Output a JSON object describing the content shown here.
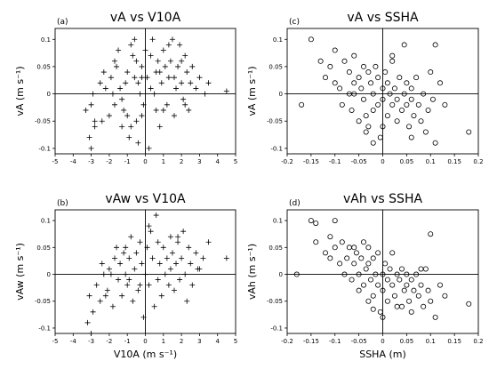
{
  "chart_data": [
    {
      "type": "scatter",
      "panel_label": "(a)",
      "title": "vA  vs  V10A",
      "xlabel": "",
      "ylabel": "vA  (m s⁻¹)",
      "xlim": [
        -5,
        5
      ],
      "ylim": [
        -0.11,
        0.12
      ],
      "xticks": [
        "-5",
        "-4",
        "-3",
        "-2",
        "-1",
        "0",
        "1",
        "2",
        "3",
        "4",
        "5"
      ],
      "yticks": [
        "-0.1",
        "-0.05",
        "0",
        "0.05",
        "0.1"
      ],
      "marker": "plus",
      "points": [
        [
          -3.1,
          -0.08
        ],
        [
          -3.0,
          -0.1
        ],
        [
          -2.8,
          -0.06
        ],
        [
          -3.3,
          -0.03
        ],
        [
          -3.0,
          -0.02
        ],
        [
          -2.4,
          -0.05
        ],
        [
          -2.2,
          0.01
        ],
        [
          -2.5,
          0.02
        ],
        [
          -2.0,
          -0.04
        ],
        [
          -2.3,
          0.04
        ],
        [
          -1.9,
          0.03
        ],
        [
          -1.7,
          -0.02
        ],
        [
          -1.6,
          0.05
        ],
        [
          -1.5,
          0.08
        ],
        [
          -1.7,
          0.06
        ],
        [
          -1.3,
          -0.06
        ],
        [
          -1.2,
          -0.03
        ],
        [
          -1.0,
          0.04
        ],
        [
          -1.1,
          0.02
        ],
        [
          -1.4,
          0.01
        ],
        [
          -1.3,
          -0.01
        ],
        [
          -0.9,
          -0.08
        ],
        [
          -0.8,
          0.09
        ],
        [
          -0.7,
          0.07
        ],
        [
          -0.6,
          0.03
        ],
        [
          -0.5,
          -0.05
        ],
        [
          -0.4,
          -0.09
        ],
        [
          -0.3,
          0.0
        ],
        [
          -0.2,
          -0.04
        ],
        [
          -0.5,
          0.06
        ],
        [
          -0.4,
          0.02
        ],
        [
          -0.2,
          0.05
        ],
        [
          -0.1,
          -0.02
        ],
        [
          0.2,
          -0.1
        ],
        [
          0.1,
          0.03
        ],
        [
          0.3,
          0.07
        ],
        [
          0.4,
          0.1
        ],
        [
          0.5,
          0.0
        ],
        [
          0.6,
          -0.03
        ],
        [
          0.7,
          0.06
        ],
        [
          0.8,
          0.04
        ],
        [
          0.8,
          -0.06
        ],
        [
          0.9,
          0.02
        ],
        [
          1.0,
          0.08
        ],
        [
          1.1,
          0.05
        ],
        [
          1.2,
          -0.02
        ],
        [
          1.3,
          0.03
        ],
        [
          1.4,
          0.06
        ],
        [
          1.5,
          0.1
        ],
        [
          1.6,
          -0.04
        ],
        [
          1.7,
          0.01
        ],
        [
          1.8,
          0.05
        ],
        [
          1.9,
          0.09
        ],
        [
          2.0,
          0.02
        ],
        [
          2.1,
          -0.01
        ],
        [
          2.2,
          0.07
        ],
        [
          2.3,
          0.04
        ],
        [
          2.4,
          -0.03
        ],
        [
          2.5,
          0.02
        ],
        [
          2.6,
          0.05
        ],
        [
          2.8,
          0.01
        ],
        [
          3.0,
          0.03
        ],
        [
          3.3,
          0.0
        ],
        [
          3.5,
          0.02
        ],
        [
          4.5,
          0.005
        ],
        [
          -0.6,
          0.1
        ],
        [
          0.0,
          0.08
        ],
        [
          1.6,
          0.03
        ],
        [
          -1.8,
          0.0
        ],
        [
          -2.8,
          -0.05
        ],
        [
          -2.9,
          0.0
        ],
        [
          -1.0,
          -0.04
        ],
        [
          0.6,
          0.04
        ],
        [
          1.0,
          -0.03
        ],
        [
          2.2,
          -0.02
        ],
        [
          -0.8,
          -0.06
        ],
        [
          0.3,
          0.01
        ],
        [
          -0.2,
          0.03
        ],
        [
          1.3,
          0.09
        ],
        [
          2.0,
          0.06
        ]
      ]
    },
    {
      "type": "scatter",
      "panel_label": "(c)",
      "title": "vA  vs  SSHA",
      "xlabel": "",
      "ylabel": "vA  (m s⁻¹)",
      "xlim": [
        -0.2,
        0.2
      ],
      "ylim": [
        -0.11,
        0.12
      ],
      "xticks": [
        "-0.2",
        "-0.15",
        "-0.1",
        "-0.05",
        "0",
        "0.05",
        "0.1",
        "0.15",
        "0.2"
      ],
      "yticks": [
        "-0.1",
        "-0.05",
        "0",
        "0.05",
        "0.1"
      ],
      "marker": "circle",
      "points": [
        [
          -0.17,
          -0.02
        ],
        [
          -0.15,
          0.1
        ],
        [
          -0.13,
          0.06
        ],
        [
          -0.12,
          0.03
        ],
        [
          -0.11,
          0.05
        ],
        [
          -0.1,
          0.08
        ],
        [
          -0.1,
          0.02
        ],
        [
          -0.09,
          0.01
        ],
        [
          -0.085,
          -0.02
        ],
        [
          -0.08,
          0.06
        ],
        [
          -0.07,
          0.04
        ],
        [
          -0.07,
          0.0
        ],
        [
          -0.065,
          -0.03
        ],
        [
          -0.06,
          0.07
        ],
        [
          -0.06,
          0.02
        ],
        [
          -0.05,
          -0.05
        ],
        [
          -0.05,
          0.03
        ],
        [
          -0.045,
          0.01
        ],
        [
          -0.04,
          0.05
        ],
        [
          -0.04,
          -0.01
        ],
        [
          -0.035,
          -0.04
        ],
        [
          -0.03,
          0.04
        ],
        [
          -0.03,
          -0.06
        ],
        [
          -0.025,
          0.02
        ],
        [
          -0.02,
          0.0
        ],
        [
          -0.02,
          -0.03
        ],
        [
          -0.015,
          0.05
        ],
        [
          -0.01,
          -0.02
        ],
        [
          -0.01,
          0.03
        ],
        [
          -0.005,
          -0.08
        ],
        [
          0.0,
          0.01
        ],
        [
          0.0,
          -0.01
        ],
        [
          0.005,
          0.04
        ],
        [
          0.01,
          -0.04
        ],
        [
          0.01,
          0.02
        ],
        [
          0.015,
          0.0
        ],
        [
          0.02,
          -0.02
        ],
        [
          0.02,
          0.06
        ],
        [
          0.025,
          0.01
        ],
        [
          0.03,
          -0.05
        ],
        [
          0.03,
          -0.01
        ],
        [
          0.035,
          0.03
        ],
        [
          0.04,
          -0.03
        ],
        [
          0.045,
          0.0
        ],
        [
          0.05,
          -0.02
        ],
        [
          0.05,
          0.02
        ],
        [
          0.055,
          -0.06
        ],
        [
          0.06,
          -0.01
        ],
        [
          0.06,
          0.01
        ],
        [
          0.065,
          -0.04
        ],
        [
          0.07,
          0.03
        ],
        [
          0.075,
          -0.02
        ],
        [
          0.08,
          -0.05
        ],
        [
          0.085,
          0.0
        ],
        [
          0.09,
          -0.07
        ],
        [
          0.095,
          -0.03
        ],
        [
          0.1,
          0.04
        ],
        [
          0.105,
          -0.01
        ],
        [
          0.11,
          -0.09
        ],
        [
          0.12,
          0.02
        ],
        [
          0.13,
          -0.02
        ],
        [
          0.18,
          -0.07
        ],
        [
          0.11,
          0.09
        ],
        [
          0.045,
          0.09
        ],
        [
          -0.02,
          -0.09
        ],
        [
          -0.035,
          -0.07
        ],
        [
          0.06,
          -0.08
        ],
        [
          0.0,
          -0.06
        ],
        [
          -0.06,
          0.0
        ],
        [
          0.02,
          0.07
        ]
      ]
    },
    {
      "type": "scatter",
      "panel_label": "(b)",
      "title": "vAw  vs  V10A",
      "xlabel": "V10A  (m s⁻¹)",
      "ylabel": "vAw  (m s⁻¹)",
      "xlim": [
        -5,
        5
      ],
      "ylim": [
        -0.11,
        0.12
      ],
      "xticks": [
        "-5",
        "-4",
        "-3",
        "-2",
        "-1",
        "0",
        "1",
        "2",
        "3",
        "4",
        "5"
      ],
      "yticks": [
        "-0.1",
        "-0.05",
        "0",
        "0.05",
        "0.1"
      ],
      "marker": "plus",
      "points": [
        [
          -3.2,
          -0.09
        ],
        [
          -3.0,
          -0.11
        ],
        [
          -2.9,
          -0.07
        ],
        [
          -3.1,
          -0.04
        ],
        [
          -2.7,
          -0.02
        ],
        [
          -2.5,
          -0.05
        ],
        [
          -2.3,
          0.0
        ],
        [
          -2.4,
          0.02
        ],
        [
          -2.1,
          -0.03
        ],
        [
          -2.0,
          0.01
        ],
        [
          -1.8,
          -0.06
        ],
        [
          -1.7,
          0.03
        ],
        [
          -1.6,
          0.05
        ],
        [
          -1.5,
          -0.01
        ],
        [
          -1.4,
          0.02
        ],
        [
          -1.3,
          -0.04
        ],
        [
          -1.2,
          0.04
        ],
        [
          -1.1,
          0.0
        ],
        [
          -1.0,
          -0.02
        ],
        [
          -0.9,
          0.03
        ],
        [
          -0.8,
          0.07
        ],
        [
          -0.7,
          -0.05
        ],
        [
          -0.6,
          0.01
        ],
        [
          -0.5,
          0.04
        ],
        [
          -0.4,
          -0.03
        ],
        [
          -0.3,
          0.06
        ],
        [
          -0.2,
          0.02
        ],
        [
          -0.1,
          -0.08
        ],
        [
          0.0,
          0.0
        ],
        [
          0.1,
          0.05
        ],
        [
          0.2,
          -0.02
        ],
        [
          0.3,
          0.08
        ],
        [
          0.4,
          0.03
        ],
        [
          0.5,
          -0.06
        ],
        [
          0.6,
          0.11
        ],
        [
          0.7,
          0.06
        ],
        [
          0.8,
          0.02
        ],
        [
          0.9,
          -0.04
        ],
        [
          1.0,
          0.05
        ],
        [
          1.1,
          0.0
        ],
        [
          1.2,
          0.03
        ],
        [
          1.3,
          -0.02
        ],
        [
          1.4,
          0.07
        ],
        [
          1.5,
          0.04
        ],
        [
          1.6,
          -0.03
        ],
        [
          1.7,
          0.02
        ],
        [
          1.8,
          0.06
        ],
        [
          1.9,
          -0.01
        ],
        [
          2.0,
          0.03
        ],
        [
          2.1,
          0.08
        ],
        [
          2.2,
          0.0
        ],
        [
          2.3,
          -0.05
        ],
        [
          2.4,
          0.05
        ],
        [
          2.5,
          0.02
        ],
        [
          2.6,
          -0.02
        ],
        [
          2.8,
          0.04
        ],
        [
          3.0,
          0.01
        ],
        [
          3.2,
          0.03
        ],
        [
          3.5,
          0.06
        ],
        [
          4.5,
          0.03
        ],
        [
          -2.2,
          -0.04
        ],
        [
          -1.9,
          0.0
        ],
        [
          -0.9,
          -0.01
        ],
        [
          0.2,
          0.09
        ],
        [
          1.4,
          0.01
        ],
        [
          -0.3,
          -0.02
        ],
        [
          0.7,
          -0.01
        ],
        [
          -1.1,
          0.05
        ],
        [
          2.9,
          0.01
        ],
        [
          1.8,
          0.07
        ]
      ]
    },
    {
      "type": "scatter",
      "panel_label": "(d)",
      "title": "vAh  vs  SSHA",
      "xlabel": "SSHA  (m)",
      "ylabel": "vAh  (m s⁻¹)",
      "xlim": [
        -0.2,
        0.2
      ],
      "ylim": [
        -0.11,
        0.12
      ],
      "xticks": [
        "-0.2",
        "-0.15",
        "-0.1",
        "-0.05",
        "0",
        "0.05",
        "0.1",
        "0.15",
        "0.2"
      ],
      "yticks": [
        "-0.1",
        "-0.05",
        "0",
        "0.05",
        "0.1"
      ],
      "marker": "circle",
      "points": [
        [
          -0.18,
          0.0
        ],
        [
          -0.15,
          0.1
        ],
        [
          -0.14,
          0.095
        ],
        [
          -0.14,
          0.06
        ],
        [
          -0.12,
          0.04
        ],
        [
          -0.11,
          0.07
        ],
        [
          -0.11,
          0.03
        ],
        [
          -0.1,
          0.1
        ],
        [
          -0.1,
          0.05
        ],
        [
          -0.09,
          0.02
        ],
        [
          -0.085,
          0.06
        ],
        [
          -0.08,
          0.0
        ],
        [
          -0.075,
          0.03
        ],
        [
          -0.07,
          0.05
        ],
        [
          -0.065,
          -0.01
        ],
        [
          -0.06,
          0.02
        ],
        [
          -0.055,
          0.04
        ],
        [
          -0.05,
          -0.03
        ],
        [
          -0.05,
          0.0
        ],
        [
          -0.045,
          0.03
        ],
        [
          -0.04,
          -0.02
        ],
        [
          -0.04,
          0.06
        ],
        [
          -0.035,
          0.01
        ],
        [
          -0.03,
          -0.05
        ],
        [
          -0.03,
          0.02
        ],
        [
          -0.025,
          -0.01
        ],
        [
          -0.02,
          0.03
        ],
        [
          -0.02,
          -0.04
        ],
        [
          -0.015,
          0.0
        ],
        [
          -0.01,
          -0.02
        ],
        [
          -0.01,
          0.04
        ],
        [
          -0.005,
          -0.07
        ],
        [
          0.0,
          0.0
        ],
        [
          0.0,
          -0.03
        ],
        [
          0.005,
          0.02
        ],
        [
          0.01,
          -0.01
        ],
        [
          0.01,
          -0.05
        ],
        [
          0.015,
          0.01
        ],
        [
          0.02,
          -0.02
        ],
        [
          0.025,
          -0.04
        ],
        [
          0.03,
          0.0
        ],
        [
          0.03,
          -0.06
        ],
        [
          0.035,
          -0.01
        ],
        [
          0.04,
          0.01
        ],
        [
          0.045,
          -0.03
        ],
        [
          0.05,
          -0.02
        ],
        [
          0.05,
          0.0
        ],
        [
          0.055,
          -0.05
        ],
        [
          0.06,
          -0.01
        ],
        [
          0.065,
          -0.03
        ],
        [
          0.07,
          0.0
        ],
        [
          0.075,
          -0.04
        ],
        [
          0.08,
          -0.02
        ],
        [
          0.085,
          -0.06
        ],
        [
          0.09,
          0.01
        ],
        [
          0.095,
          -0.03
        ],
        [
          0.1,
          -0.05
        ],
        [
          0.1,
          0.075
        ],
        [
          0.11,
          -0.08
        ],
        [
          0.12,
          -0.02
        ],
        [
          0.13,
          -0.04
        ],
        [
          0.18,
          -0.055
        ],
        [
          -0.02,
          -0.065
        ],
        [
          0.0,
          -0.08
        ],
        [
          -0.06,
          0.05
        ],
        [
          0.06,
          -0.07
        ],
        [
          0.04,
          -0.06
        ],
        [
          -0.03,
          0.05
        ],
        [
          0.02,
          0.04
        ],
        [
          0.08,
          0.01
        ]
      ]
    }
  ]
}
